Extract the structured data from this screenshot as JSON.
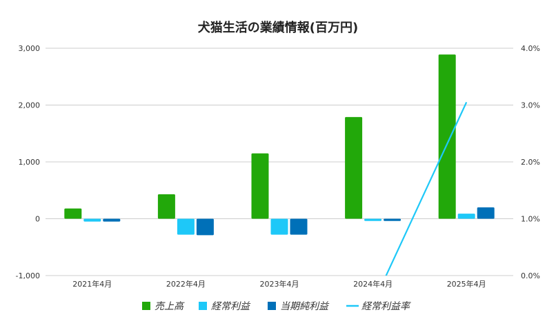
{
  "chart_data": {
    "type": "bar",
    "title": "犬猫生活の業績情報(百万円)",
    "xlabel": "",
    "ylabel": "",
    "categories": [
      "2021年4月",
      "2022年4月",
      "2023年4月",
      "2024年4月",
      "2025年4月"
    ],
    "ylim": [
      -1000,
      3000
    ],
    "yticks": [
      -1000,
      0,
      1000,
      2000,
      3000
    ],
    "ytick_labels": [
      "-1,000",
      "0",
      "1,000",
      "2,000",
      "3,000"
    ],
    "y2lim": [
      0,
      4
    ],
    "y2ticks": [
      0,
      1,
      2,
      3,
      4
    ],
    "y2tick_labels": [
      "0.0%",
      "1.0%",
      "2.0%",
      "3.0%",
      "4.0%"
    ],
    "grid": true,
    "legend_position": "bottom",
    "series": [
      {
        "name": "売上高",
        "type": "bar",
        "color": "#22a80a",
        "values": [
          180,
          430,
          1150,
          1790,
          2890
        ]
      },
      {
        "name": "経常利益",
        "type": "bar",
        "color": "#1ec8f8",
        "values": [
          -50,
          -280,
          -280,
          -40,
          90
        ]
      },
      {
        "name": "当期純利益",
        "type": "bar",
        "color": "#0070b8",
        "values": [
          -50,
          -290,
          -280,
          -40,
          200
        ]
      },
      {
        "name": "経常利益率",
        "type": "line",
        "axis": "right",
        "color": "#1ec8f8",
        "values": [
          null,
          null,
          null,
          -0.5,
          3.05
        ]
      }
    ]
  }
}
